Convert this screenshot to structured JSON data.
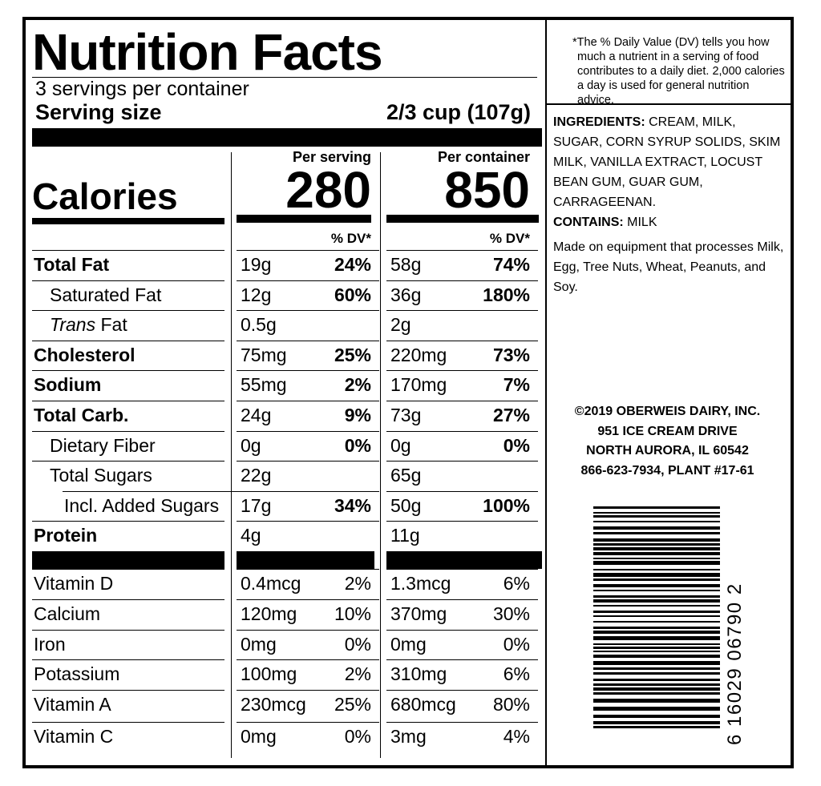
{
  "title": "Nutrition Facts",
  "servings": "3 servings per container",
  "serving_size_label": "Serving size",
  "serving_size": "2/3 cup (107g)",
  "calories_label": "Calories",
  "columns": [
    {
      "header": "Per serving",
      "calories": "280"
    },
    {
      "header": "Per container",
      "calories": "850"
    }
  ],
  "dv_header": "% DV*",
  "nutrients": [
    {
      "name": "Total Fat",
      "bold": true,
      "level": 0,
      "serving": {
        "amount": "19g",
        "dv": "24%"
      },
      "container": {
        "amount": "58g",
        "dv": "74%"
      }
    },
    {
      "name": "Saturated Fat",
      "bold": false,
      "level": 1,
      "serving": {
        "amount": "12g",
        "dv": "60%"
      },
      "container": {
        "amount": "36g",
        "dv": "180%"
      }
    },
    {
      "italic": "Trans",
      "name": "Fat",
      "bold": false,
      "level": 1,
      "serving": {
        "amount": "0.5g",
        "dv": null
      },
      "container": {
        "amount": "2g",
        "dv": null
      }
    },
    {
      "name": "Cholesterol",
      "bold": true,
      "level": 0,
      "serving": {
        "amount": "75mg",
        "dv": "25%"
      },
      "container": {
        "amount": "220mg",
        "dv": "73%"
      }
    },
    {
      "name": "Sodium",
      "bold": true,
      "level": 0,
      "serving": {
        "amount": "55mg",
        "dv": "2%"
      },
      "container": {
        "amount": "170mg",
        "dv": "7%"
      }
    },
    {
      "name": "Total Carb.",
      "bold": true,
      "level": 0,
      "serving": {
        "amount": "24g",
        "dv": "9%"
      },
      "container": {
        "amount": "73g",
        "dv": "27%"
      }
    },
    {
      "name": "Dietary Fiber",
      "bold": false,
      "level": 1,
      "serving": {
        "amount": "0g",
        "dv": "0%"
      },
      "container": {
        "amount": "0g",
        "dv": "0%"
      }
    },
    {
      "name": "Total Sugars",
      "bold": false,
      "level": 1,
      "serving": {
        "amount": "22g",
        "dv": null
      },
      "container": {
        "amount": "65g",
        "dv": null
      }
    },
    {
      "name": "Incl. Added Sugars",
      "bold": false,
      "level": 2,
      "serving": {
        "amount": "17g",
        "dv": "34%"
      },
      "container": {
        "amount": "50g",
        "dv": "100%"
      }
    },
    {
      "name": "Protein",
      "bold": true,
      "level": 0,
      "serving": {
        "amount": "4g",
        "dv": null
      },
      "container": {
        "amount": "11g",
        "dv": null
      }
    }
  ],
  "vitamins": [
    {
      "name": "Vitamin D",
      "serving": {
        "amount": "0.4mcg",
        "dv": "2%"
      },
      "container": {
        "amount": "1.3mcg",
        "dv": "6%"
      }
    },
    {
      "name": "Calcium",
      "serving": {
        "amount": "120mg",
        "dv": "10%"
      },
      "container": {
        "amount": "370mg",
        "dv": "30%"
      }
    },
    {
      "name": "Iron",
      "serving": {
        "amount": "0mg",
        "dv": "0%"
      },
      "container": {
        "amount": "0mg",
        "dv": "0%"
      }
    },
    {
      "name": "Potassium",
      "serving": {
        "amount": "100mg",
        "dv": "2%"
      },
      "container": {
        "amount": "310mg",
        "dv": "6%"
      }
    },
    {
      "name": "Vitamin A",
      "serving": {
        "amount": "230mcg",
        "dv": "25%"
      },
      "container": {
        "amount": "680mcg",
        "dv": "80%"
      }
    },
    {
      "name": "Vitamin C",
      "serving": {
        "amount": "0mg",
        "dv": "0%"
      },
      "container": {
        "amount": "3mg",
        "dv": "4%"
      }
    }
  ],
  "footnote": "*The % Daily Value (DV) tells you how much a nutrient in a serving of food contributes to a daily diet. 2,000 calories a day is used for general nutrition advice.",
  "ingredients_label": "INGREDIENTS:",
  "ingredients": "CREAM, MILK, SUGAR, CORN SYRUP SOLIDS, SKIM MILK, VANILLA EXTRACT, LOCUST BEAN GUM, GUAR GUM, CARRAGEENAN.",
  "contains_label": "CONTAINS:",
  "contains": "MILK",
  "allergen_note": "Made on equipment that processes Milk, Egg, Tree Nuts, Wheat, Peanuts, and Soy.",
  "address": [
    "©2019 OBERWEIS DAIRY, INC.",
    "951 ICE CREAM DRIVE",
    "NORTH AURORA, IL 60542",
    "866-623-7934, PLANT #17-61"
  ],
  "barcode_digits": "6 16029 06790 2"
}
